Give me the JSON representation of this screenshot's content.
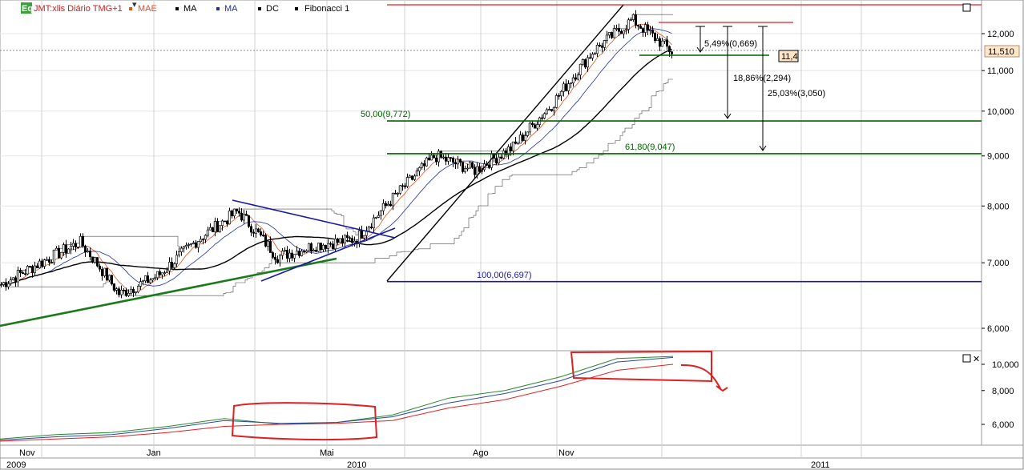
{
  "legend": {
    "badge": "Eq",
    "symbol": "JMT:xlis Diário TMG+1",
    "items": [
      {
        "label": "MAE",
        "color": "#e05020"
      },
      {
        "label": "MA",
        "color": "#000000"
      },
      {
        "label": "MA",
        "color": "#2030a0"
      },
      {
        "label": "DC",
        "color": "#000000"
      },
      {
        "label": "Fibonacci 1",
        "color": "#000000"
      }
    ]
  },
  "colors": {
    "candles": "#000000",
    "mae": "#e05020",
    "ma_fast": "#2030a0",
    "ma_slow": "#000000",
    "donchian": "#000000",
    "fib_green": "#006400",
    "fib_blue": "#1a1aa0",
    "channel_red": "#e02020",
    "trend_green": "#1a7a1a",
    "triangle_blue": "#1a1aa0",
    "price_badge_bg": "#ffe6c8",
    "lower_green": "#2a8a2a",
    "lower_blue": "#2a4aa0",
    "lower_red": "#e02020"
  },
  "chart_data": [
    {
      "type": "candlestick",
      "title": "JMT:xlis Diário TMG+1",
      "scale": "log",
      "ylim": [
        5.6,
        12.8
      ],
      "y_ticks": [
        "12,000",
        "11,000",
        "10,000",
        "9,000",
        "8,000",
        "7,000",
        "6,000"
      ],
      "current_price": "11,510",
      "x_month_labels": [
        "Nov",
        "Jan",
        "Mai",
        "Ago",
        "Nov"
      ],
      "x_year_labels": [
        "2009",
        "2010",
        "2011"
      ],
      "price_path": [
        [
          "2009-11",
          6.65
        ],
        [
          "2009-12",
          7.0
        ],
        [
          "2010-01-01",
          7.35
        ],
        [
          "2010-01-15",
          6.5
        ],
        [
          "2010-02",
          6.8
        ],
        [
          "2010-03",
          7.4
        ],
        [
          "2010-04-01",
          7.9
        ],
        [
          "2010-04-15",
          7.1
        ],
        [
          "2010-05",
          7.3
        ],
        [
          "2010-06",
          7.4
        ],
        [
          "2010-06-15",
          8.2
        ],
        [
          "2010-07-01",
          9.0
        ],
        [
          "2010-07-15",
          8.7
        ],
        [
          "2010-08",
          9.2
        ],
        [
          "2010-09",
          10.2
        ],
        [
          "2010-10",
          11.5
        ],
        [
          "2010-11",
          12.4
        ],
        [
          "2010-12",
          11.5
        ]
      ],
      "fibonacci_levels": [
        {
          "label": "50,00(9,772)",
          "value": 9.772
        },
        {
          "label": "61,80(9,047)",
          "value": 9.047
        },
        {
          "label": "100,00(6,697)",
          "value": 6.697
        }
      ],
      "annotations": [
        {
          "label": "5,49%(0,669)",
          "value": 0.669
        },
        {
          "label": "18,86%(2,294)",
          "value": 2.294
        },
        {
          "label": "25,03%(3,050)",
          "value": 3.05
        },
        {
          "label": "11,4",
          "value": 11.4
        }
      ]
    },
    {
      "type": "line",
      "scale": "log",
      "ylim": [
        5.1,
        11.0
      ],
      "y_ticks": [
        "10,000",
        "8,000",
        "6,000"
      ],
      "series": [
        {
          "values": [
            5.3,
            5.5,
            5.6,
            5.9,
            6.3,
            6.0,
            6.1,
            6.5,
            7.5,
            8.0,
            9.0,
            10.5,
            10.7
          ]
        },
        {
          "values": [
            5.25,
            5.4,
            5.5,
            5.8,
            6.2,
            6.05,
            6.1,
            6.4,
            7.2,
            7.8,
            8.7,
            10.2,
            10.6
          ]
        },
        {
          "values": [
            5.2,
            5.3,
            5.4,
            5.6,
            5.9,
            6.0,
            6.05,
            6.2,
            6.9,
            7.4,
            8.3,
            9.5,
            10.0
          ]
        }
      ]
    }
  ]
}
